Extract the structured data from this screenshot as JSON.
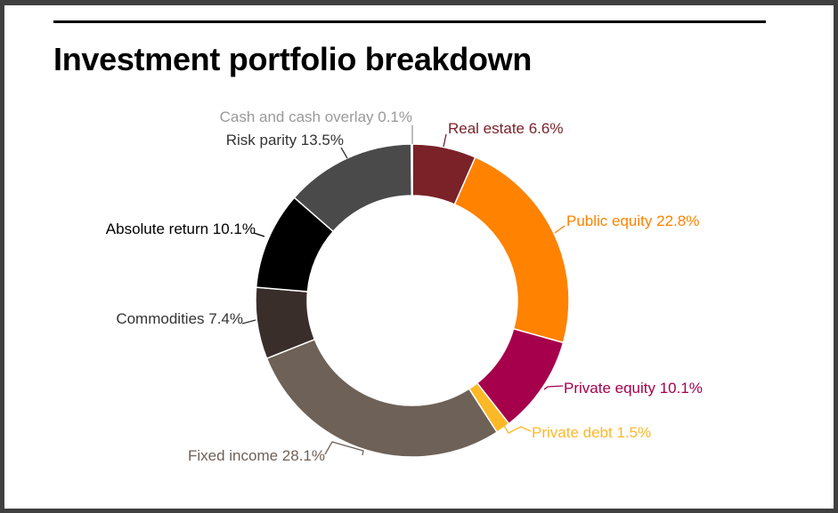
{
  "chart_data": {
    "type": "pie",
    "variant": "donut",
    "title": "Investment portfolio breakdown",
    "slices": [
      {
        "label": "Real estate",
        "value": 6.6,
        "display": "Real estate 6.6%",
        "color": "#7a2228",
        "label_color": "#7a2228"
      },
      {
        "label": "Public equity",
        "value": 22.8,
        "display": "Public equity 22.8%",
        "color": "#ff8200",
        "label_color": "#ff8200"
      },
      {
        "label": "Private equity",
        "value": 10.1,
        "display": "Private equity 10.1%",
        "color": "#a6004c",
        "label_color": "#a6004c"
      },
      {
        "label": "Private debt",
        "value": 1.5,
        "display": "Private debt 1.5%",
        "color": "#fdb827",
        "label_color": "#fdb827"
      },
      {
        "label": "Fixed income",
        "value": 28.1,
        "display": "Fixed income 28.1%",
        "color": "#6e6157",
        "label_color": "#6e6157"
      },
      {
        "label": "Commodities",
        "value": 7.4,
        "display": "Commodities 7.4%",
        "color": "#3a2e2b",
        "label_color": "#333333"
      },
      {
        "label": "Absolute return",
        "value": 10.1,
        "display": "Absolute return 10.1%",
        "color": "#000000",
        "label_color": "#000000"
      },
      {
        "label": "Risk parity",
        "value": 13.5,
        "display": "Risk parity 13.5%",
        "color": "#4a4a4a",
        "label_color": "#333333"
      },
      {
        "label": "Cash and cash overlay",
        "value": 0.1,
        "display": "Cash and cash overlay 0.1%",
        "color": "#999999",
        "label_color": "#999999"
      }
    ]
  }
}
